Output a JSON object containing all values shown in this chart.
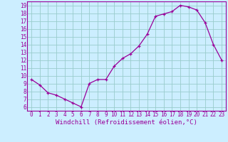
{
  "x": [
    0,
    1,
    2,
    3,
    4,
    5,
    6,
    7,
    8,
    9,
    10,
    11,
    12,
    13,
    14,
    15,
    16,
    17,
    18,
    19,
    20,
    21,
    22,
    23
  ],
  "y": [
    9.5,
    8.8,
    7.8,
    7.5,
    7.0,
    6.5,
    6.0,
    9.0,
    9.5,
    9.5,
    11.2,
    12.2,
    12.8,
    13.8,
    15.3,
    17.6,
    17.9,
    18.2,
    19.0,
    18.8,
    18.4,
    16.8,
    14.0,
    12.0
  ],
  "line_color": "#990099",
  "marker": "+",
  "marker_size": 3,
  "linewidth": 0.9,
  "markeredgewidth": 0.9,
  "xlabel": "Windchill (Refroidissement éolien,°C)",
  "xlabel_fontsize": 6.5,
  "xlim": [
    -0.5,
    23.5
  ],
  "ylim": [
    5.5,
    19.5
  ],
  "yticks": [
    6,
    7,
    8,
    9,
    10,
    11,
    12,
    13,
    14,
    15,
    16,
    17,
    18,
    19
  ],
  "xticks": [
    0,
    1,
    2,
    3,
    4,
    5,
    6,
    7,
    8,
    9,
    10,
    11,
    12,
    13,
    14,
    15,
    16,
    17,
    18,
    19,
    20,
    21,
    22,
    23
  ],
  "bg_color": "#cceeff",
  "grid_color": "#99cccc",
  "tick_fontsize": 5.5,
  "tick_color": "#990099",
  "spine_color": "#990099"
}
